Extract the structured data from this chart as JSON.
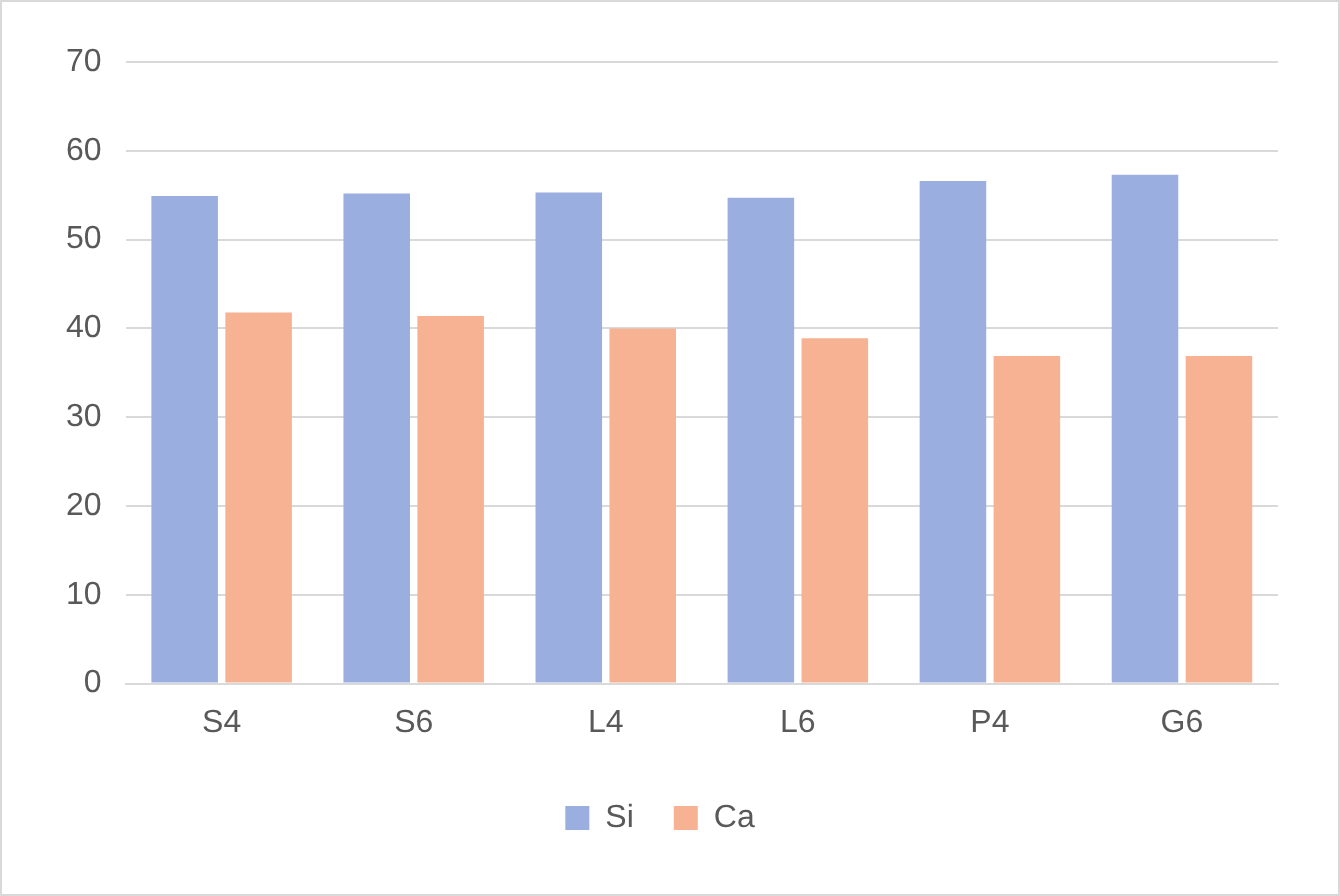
{
  "chart_data": {
    "type": "bar",
    "categories": [
      "S4",
      "S6",
      "L4",
      "L6",
      "P4",
      "G6"
    ],
    "series": [
      {
        "name": "Si",
        "color": "#9aaedf",
        "values": [
          54.9,
          55.2,
          55.3,
          54.7,
          56.6,
          57.3
        ]
      },
      {
        "name": "Ca",
        "color": "#f6b292",
        "values": [
          41.8,
          41.4,
          40.0,
          38.9,
          36.9,
          36.9
        ]
      }
    ],
    "ylim": [
      0,
      70
    ],
    "yticks": [
      0,
      10,
      20,
      30,
      40,
      50,
      60,
      70
    ],
    "grid": "y",
    "legend": "bottom"
  }
}
